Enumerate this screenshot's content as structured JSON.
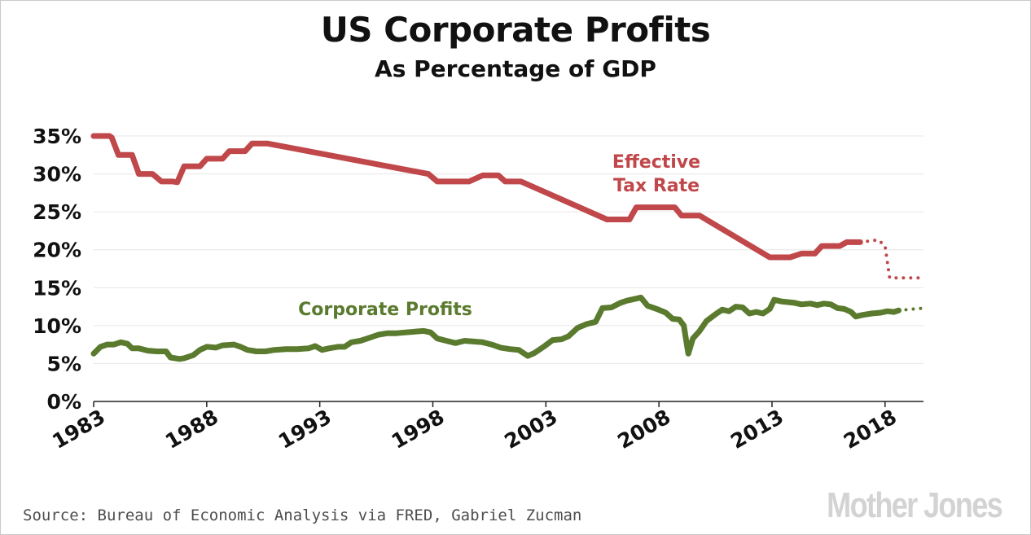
{
  "title": "US Corporate Profits",
  "subtitle": "As Percentage of GDP",
  "source": "Source: Bureau of Economic Analysis via FRED, Gabriel Zucman",
  "logo": "Mother Jones",
  "colors": {
    "tax_rate": "#c0474a",
    "profits": "#5a7a2e",
    "grid": "#e6e6e6",
    "axis": "#222222"
  },
  "chart_data": {
    "type": "line",
    "title": "US Corporate Profits",
    "subtitle": "As Percentage of GDP",
    "xlim": [
      1983,
      2019.7
    ],
    "ylim": [
      0,
      35
    ],
    "x_ticks": [
      1983,
      1988,
      1993,
      1998,
      2003,
      2008,
      2013,
      2018
    ],
    "x_tick_labels": [
      "1983",
      "1988",
      "1993",
      "1998",
      "2003",
      "2008",
      "2013",
      "2018"
    ],
    "y_ticks": [
      0,
      5,
      10,
      15,
      20,
      25,
      30,
      35
    ],
    "y_tick_labels": [
      "0%",
      "5%",
      "10%",
      "15%",
      "20%",
      "25%",
      "30%",
      "35%"
    ],
    "grid": "horizontal",
    "series": [
      {
        "name": "Effective Tax Rate",
        "color": "#c0474a",
        "label_lines": [
          "Effective",
          "Tax Rate"
        ],
        "points": [
          [
            1983,
            35
          ],
          [
            1983.7,
            35
          ],
          [
            1983.8,
            34.8
          ],
          [
            1984.1,
            32.5
          ],
          [
            1984.7,
            32.5
          ],
          [
            1985,
            30
          ],
          [
            1985.6,
            30
          ],
          [
            1986,
            29
          ],
          [
            1986.5,
            29
          ],
          [
            1986.7,
            28.9
          ],
          [
            1987,
            31
          ],
          [
            1987.7,
            31
          ],
          [
            1988,
            32
          ],
          [
            1988.7,
            32
          ],
          [
            1989,
            33
          ],
          [
            1989.7,
            33
          ],
          [
            1990,
            34
          ],
          [
            1990.7,
            34
          ],
          [
            1997.8,
            30
          ],
          [
            1998.2,
            29
          ],
          [
            1999.6,
            29
          ],
          [
            2000.2,
            29.8
          ],
          [
            2000.9,
            29.8
          ],
          [
            2001.2,
            29
          ],
          [
            2001.9,
            29
          ],
          [
            2005.7,
            24
          ],
          [
            2006.7,
            24
          ],
          [
            2007,
            25.6
          ],
          [
            2008.7,
            25.6
          ],
          [
            2009,
            24.5
          ],
          [
            2009.8,
            24.5
          ],
          [
            2012.9,
            19
          ],
          [
            2013.8,
            19
          ],
          [
            2014.3,
            19.5
          ],
          [
            2014.9,
            19.5
          ],
          [
            2015.2,
            20.5
          ],
          [
            2016,
            20.5
          ],
          [
            2016.3,
            21
          ],
          [
            2016.9,
            21
          ]
        ],
        "projection": [
          [
            2016.9,
            21
          ],
          [
            2017.7,
            21.3
          ],
          [
            2018,
            20.5
          ],
          [
            2018.2,
            16.3
          ],
          [
            2019.7,
            16.3
          ]
        ]
      },
      {
        "name": "Corporate Profits",
        "color": "#5a7a2e",
        "label_lines": [
          "Corporate Profits"
        ],
        "points": [
          [
            1983,
            6.3
          ],
          [
            1983.3,
            7.2
          ],
          [
            1983.6,
            7.5
          ],
          [
            1983.9,
            7.5
          ],
          [
            1984.2,
            7.8
          ],
          [
            1984.5,
            7.6
          ],
          [
            1984.7,
            7
          ],
          [
            1985,
            7
          ],
          [
            1985.4,
            6.7
          ],
          [
            1985.8,
            6.6
          ],
          [
            1986.2,
            6.6
          ],
          [
            1986.4,
            5.8
          ],
          [
            1986.8,
            5.6
          ],
          [
            1987,
            5.7
          ],
          [
            1987.4,
            6.1
          ],
          [
            1987.7,
            6.8
          ],
          [
            1988,
            7.2
          ],
          [
            1988.4,
            7.1
          ],
          [
            1988.7,
            7.4
          ],
          [
            1989.2,
            7.5
          ],
          [
            1989.5,
            7.2
          ],
          [
            1989.8,
            6.8
          ],
          [
            1990.2,
            6.6
          ],
          [
            1990.6,
            6.6
          ],
          [
            1991,
            6.8
          ],
          [
            1991.5,
            6.9
          ],
          [
            1992,
            6.9
          ],
          [
            1992.5,
            7
          ],
          [
            1992.8,
            7.3
          ],
          [
            1993.1,
            6.8
          ],
          [
            1993.4,
            7
          ],
          [
            1993.8,
            7.2
          ],
          [
            1994.1,
            7.2
          ],
          [
            1994.4,
            7.8
          ],
          [
            1994.8,
            8
          ],
          [
            1995.2,
            8.4
          ],
          [
            1995.6,
            8.8
          ],
          [
            1996,
            9
          ],
          [
            1996.4,
            9
          ],
          [
            1996.8,
            9.1
          ],
          [
            1997.2,
            9.2
          ],
          [
            1997.6,
            9.3
          ],
          [
            1997.9,
            9.1
          ],
          [
            1998.2,
            8.3
          ],
          [
            1998.6,
            8
          ],
          [
            1999,
            7.7
          ],
          [
            1999.4,
            8
          ],
          [
            1999.8,
            7.9
          ],
          [
            2000.2,
            7.8
          ],
          [
            2000.6,
            7.5
          ],
          [
            2001,
            7.1
          ],
          [
            2001.4,
            6.9
          ],
          [
            2001.8,
            6.8
          ],
          [
            2002.2,
            6
          ],
          [
            2002.5,
            6.4
          ],
          [
            2002.9,
            7.2
          ],
          [
            2003.3,
            8.1
          ],
          [
            2003.7,
            8.2
          ],
          [
            2004,
            8.6
          ],
          [
            2004.4,
            9.7
          ],
          [
            2004.8,
            10.2
          ],
          [
            2005.2,
            10.5
          ],
          [
            2005.5,
            12.3
          ],
          [
            2005.9,
            12.4
          ],
          [
            2006.3,
            13
          ],
          [
            2006.6,
            13.3
          ],
          [
            2006.9,
            13.5
          ],
          [
            2007.2,
            13.7
          ],
          [
            2007.5,
            12.6
          ],
          [
            2007.9,
            12.2
          ],
          [
            2008.3,
            11.7
          ],
          [
            2008.6,
            10.9
          ],
          [
            2008.9,
            10.8
          ],
          [
            2009.1,
            10
          ],
          [
            2009.3,
            6.3
          ],
          [
            2009.5,
            8.3
          ],
          [
            2009.8,
            9.3
          ],
          [
            2010.1,
            10.6
          ],
          [
            2010.5,
            11.5
          ],
          [
            2010.8,
            12.1
          ],
          [
            2011.1,
            11.9
          ],
          [
            2011.4,
            12.5
          ],
          [
            2011.7,
            12.4
          ],
          [
            2012,
            11.6
          ],
          [
            2012.3,
            11.8
          ],
          [
            2012.6,
            11.6
          ],
          [
            2012.9,
            12.2
          ],
          [
            2013.1,
            13.4
          ],
          [
            2013.4,
            13.2
          ],
          [
            2013.7,
            13.1
          ],
          [
            2014,
            13
          ],
          [
            2014.3,
            12.8
          ],
          [
            2014.7,
            12.9
          ],
          [
            2015,
            12.7
          ],
          [
            2015.3,
            12.9
          ],
          [
            2015.6,
            12.8
          ],
          [
            2015.9,
            12.3
          ],
          [
            2016.2,
            12.2
          ],
          [
            2016.5,
            11.8
          ],
          [
            2016.7,
            11.2
          ],
          [
            2017,
            11.4
          ],
          [
            2017.4,
            11.6
          ],
          [
            2017.8,
            11.7
          ],
          [
            2018.1,
            11.9
          ],
          [
            2018.4,
            11.8
          ],
          [
            2018.6,
            12
          ]
        ],
        "projection": [
          [
            2018.6,
            12
          ],
          [
            2019.7,
            12.3
          ]
        ]
      }
    ]
  }
}
